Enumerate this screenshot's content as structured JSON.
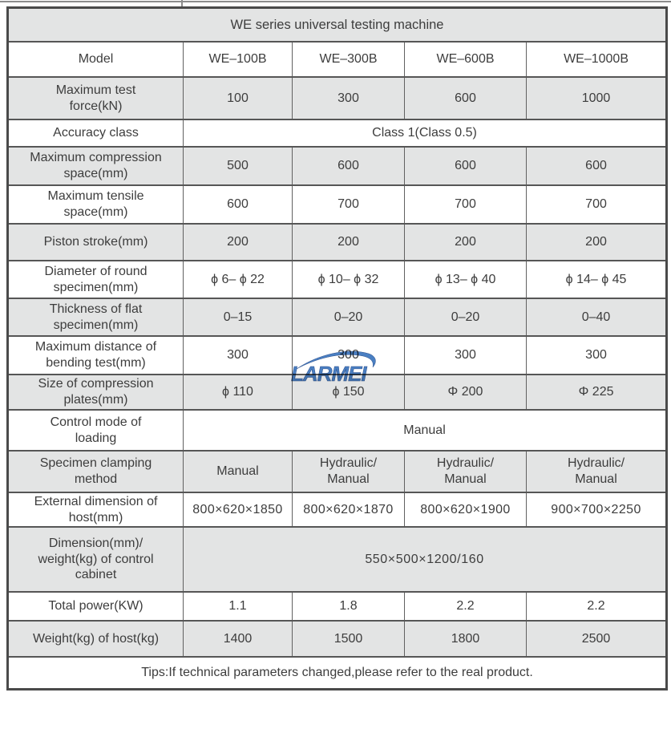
{
  "title": "WE series universal testing machine",
  "header": {
    "label": "Model",
    "models": [
      "WE–100B",
      "WE–300B",
      "WE–600B",
      "WE–1000B"
    ]
  },
  "rows": [
    {
      "label": [
        "Maximum test",
        "force(kN)"
      ],
      "values": [
        "100",
        "300",
        "600",
        "1000"
      ]
    },
    {
      "label": [
        "Accuracy class"
      ],
      "span": "Class 1(Class 0.5)"
    },
    {
      "label": [
        "Maximum compression",
        "space(mm)"
      ],
      "values": [
        "500",
        "600",
        "600",
        "600"
      ]
    },
    {
      "label": [
        "Maximum tensile",
        "space(mm)"
      ],
      "values": [
        "600",
        "700",
        "700",
        "700"
      ]
    },
    {
      "label": [
        "Piston stroke(mm)"
      ],
      "values": [
        "200",
        "200",
        "200",
        "200"
      ]
    },
    {
      "label": [
        "Diameter of round",
        "specimen(mm)"
      ],
      "values": [
        "ϕ 6– ϕ 22",
        "ϕ 10– ϕ 32",
        "ϕ 13– ϕ 40",
        "ϕ 14– ϕ 45"
      ]
    },
    {
      "label": [
        "Thickness of flat",
        "specimen(mm)"
      ],
      "values": [
        "0–15",
        "0–20",
        "0–20",
        "0–40"
      ]
    },
    {
      "label": [
        "Maximum distance of",
        "bending test(mm)"
      ],
      "values": [
        "300",
        "300",
        "300",
        "300"
      ]
    },
    {
      "label": [
        "Size of compression",
        "plates(mm)"
      ],
      "values": [
        "ϕ 110",
        "ϕ 150",
        "Φ 200",
        "Φ 225"
      ]
    },
    {
      "label": [
        "Control mode of",
        "loading"
      ],
      "span": "Manual"
    },
    {
      "label": [
        "Specimen clamping",
        "method"
      ],
      "values": [
        "Manual",
        [
          "Hydraulic/",
          "Manual"
        ],
        [
          "Hydraulic/",
          "Manual"
        ],
        [
          "Hydraulic/",
          "Manual"
        ]
      ]
    },
    {
      "label": [
        "External dimension of",
        "host(mm)"
      ],
      "values": [
        "800×620×1850",
        "800×620×1870",
        "800×620×1900",
        "900×700×2250"
      ],
      "small": true
    },
    {
      "label": [
        "Dimension(mm)/",
        "weight(kg) of control",
        "cabinet"
      ],
      "span": "550×500×1200/160"
    },
    {
      "label": [
        "Total power(KW)"
      ],
      "values": [
        "1.1",
        "1.8",
        "2.2",
        "2.2"
      ]
    },
    {
      "label": [
        "Weight(kg) of host(kg)"
      ],
      "values": [
        "1400",
        "1500",
        "1800",
        "2500"
      ]
    }
  ],
  "tips": "Tips:If technical parameters changed,please refer to the real product.",
  "watermark": {
    "text": "LARMEI",
    "color": "#4a7fc2",
    "outline": "#2e4f8a"
  }
}
